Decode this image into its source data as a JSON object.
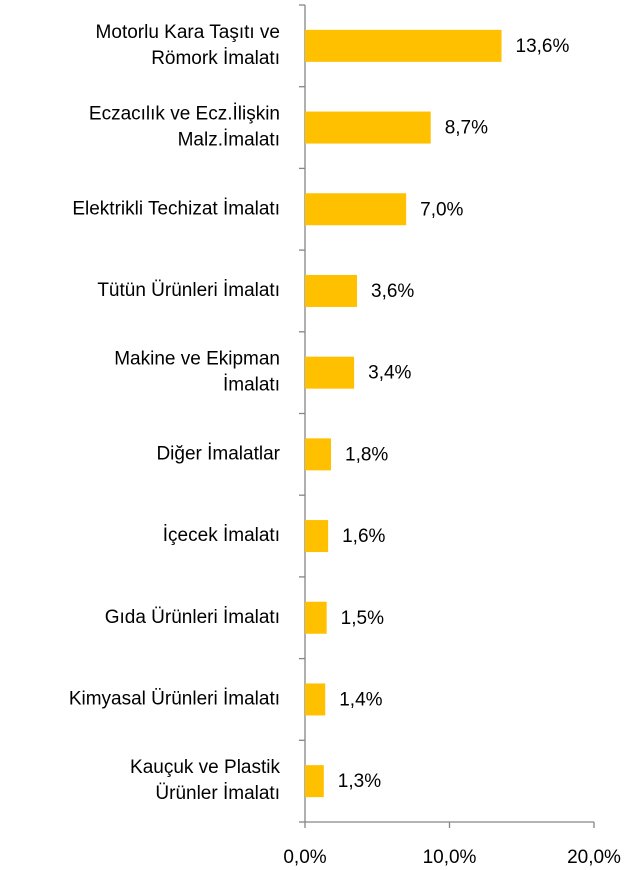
{
  "chart_data": {
    "type": "bar",
    "orientation": "horizontal",
    "categories": [
      [
        "Motorlu Kara Taşıtı ve",
        "Römork İmalatı"
      ],
      [
        "Eczacılık ve Ecz.İlişkin",
        "Malz.İmalatı"
      ],
      [
        "Elektrikli Techizat İmalatı"
      ],
      [
        "Tütün Ürünleri İmalatı"
      ],
      [
        "Makine ve Ekipman",
        "İmalatı"
      ],
      [
        "Diğer İmalatlar"
      ],
      [
        "İçecek İmalatı"
      ],
      [
        "Gıda Ürünleri İmalatı"
      ],
      [
        "Kimyasal Ürünleri İmalatı"
      ],
      [
        "Kauçuk ve Plastik",
        "Ürünler İmalatı"
      ]
    ],
    "values": [
      13.6,
      8.7,
      7.0,
      3.6,
      3.4,
      1.8,
      1.6,
      1.5,
      1.4,
      1.3
    ],
    "value_labels": [
      "13,6%",
      "8,7%",
      "7,0%",
      "3,6%",
      "3,4%",
      "1,8%",
      "1,6%",
      "1,5%",
      "1,4%",
      "1,3%"
    ],
    "color": "#ffc000",
    "xlim": [
      0,
      20
    ],
    "xticks": [
      {
        "value": 0,
        "label": "0,0%"
      },
      {
        "value": 10,
        "label": "10,0%"
      },
      {
        "value": 20,
        "label": "20,0%"
      }
    ],
    "grid": false
  }
}
